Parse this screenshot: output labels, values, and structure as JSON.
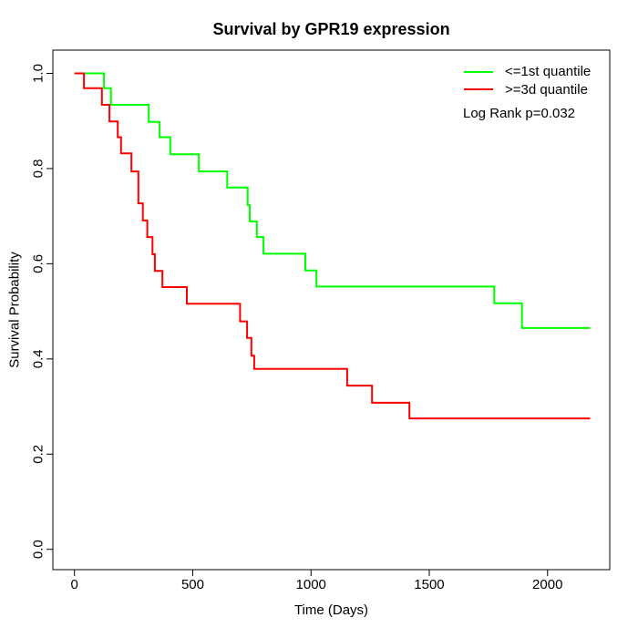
{
  "chart": {
    "title": "Survival by GPR19 expression",
    "xlabel": "Time (Days)",
    "ylabel": "Survival Probability",
    "annotation": "Log Rank p=0.032"
  },
  "chart_data": {
    "type": "line",
    "subtype": "kaplan-meier-step",
    "title": "Survival by GPR19 expression",
    "xlabel": "Time (Days)",
    "ylabel": "Survival Probability",
    "xlim": [
      0,
      2263
    ],
    "ylim": [
      0,
      1
    ],
    "x_ticks": [
      0,
      500,
      1000,
      1500,
      2000
    ],
    "x_tick_labels": [
      "0",
      "500",
      "1000",
      "1500",
      "2000"
    ],
    "y_ticks": [
      0.0,
      0.2,
      0.4,
      0.6,
      0.8,
      1.0
    ],
    "y_tick_labels": [
      "0.0",
      "0.2",
      "0.4",
      "0.6",
      "0.8",
      "1.0"
    ],
    "grid": false,
    "legend_position": "top-right",
    "annotation": "Log Rank p=0.032",
    "log_rank_p": 0.032,
    "series": [
      {
        "name": "<=1st quantile",
        "color": "#00ff00",
        "end_time": 2180,
        "steps": [
          [
            0,
            1.0
          ],
          [
            125,
            0.969
          ],
          [
            154,
            0.934
          ],
          [
            314,
            0.898
          ],
          [
            360,
            0.866
          ],
          [
            405,
            0.83
          ],
          [
            526,
            0.794
          ],
          [
            646,
            0.76
          ],
          [
            732,
            0.723
          ],
          [
            741,
            0.689
          ],
          [
            771,
            0.656
          ],
          [
            799,
            0.621
          ],
          [
            976,
            0.586
          ],
          [
            1023,
            0.552
          ],
          [
            1775,
            0.517
          ],
          [
            1892,
            0.465
          ]
        ]
      },
      {
        "name": ">=3d quantile",
        "color": "#ff0000",
        "end_time": 2180,
        "steps": [
          [
            0,
            1.0
          ],
          [
            40,
            0.969
          ],
          [
            116,
            0.934
          ],
          [
            148,
            0.899
          ],
          [
            183,
            0.866
          ],
          [
            197,
            0.832
          ],
          [
            241,
            0.794
          ],
          [
            270,
            0.727
          ],
          [
            289,
            0.691
          ],
          [
            308,
            0.656
          ],
          [
            330,
            0.62
          ],
          [
            340,
            0.585
          ],
          [
            372,
            0.551
          ],
          [
            475,
            0.516
          ],
          [
            700,
            0.479
          ],
          [
            730,
            0.444
          ],
          [
            748,
            0.407
          ],
          [
            760,
            0.379
          ],
          [
            1153,
            0.344
          ],
          [
            1258,
            0.308
          ],
          [
            1416,
            0.275
          ]
        ]
      }
    ]
  }
}
